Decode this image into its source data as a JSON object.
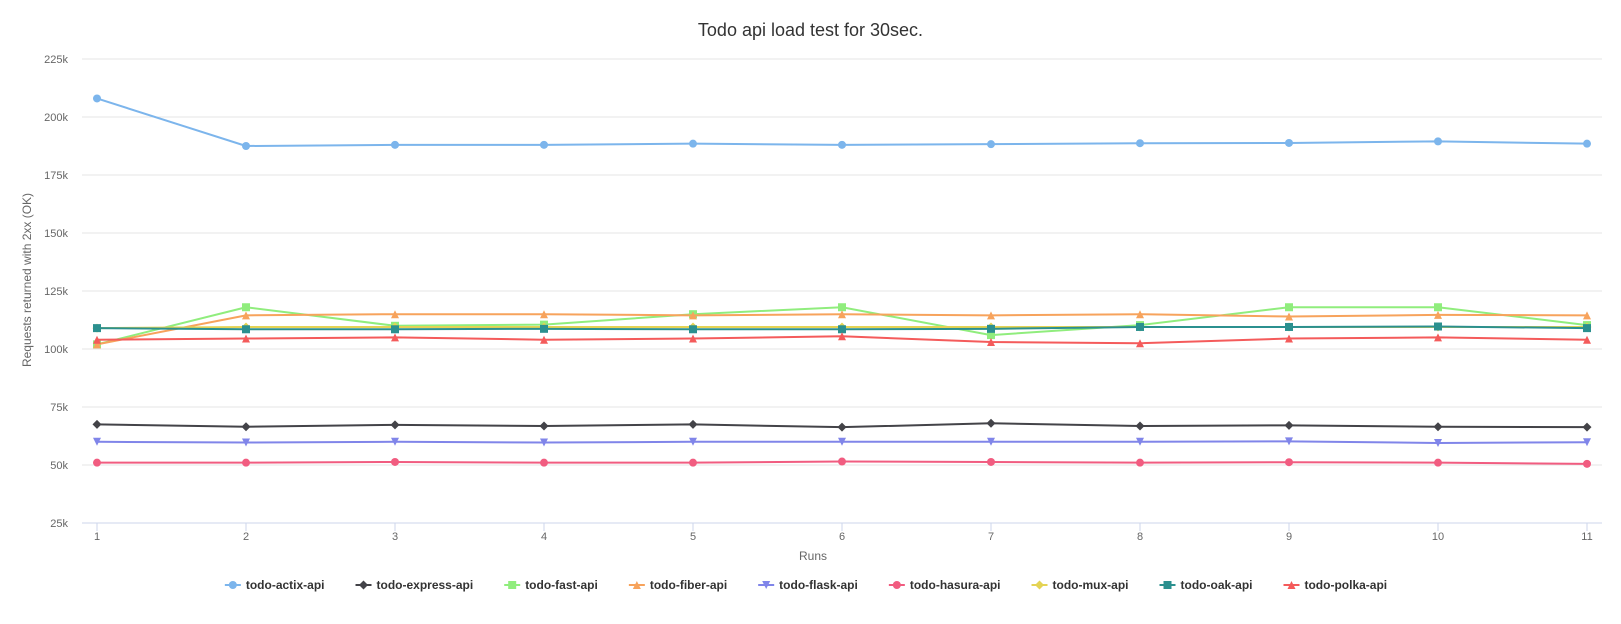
{
  "chart_data": {
    "type": "line",
    "title": "Todo api load test for 30sec.",
    "xlabel": "Runs",
    "ylabel": "Requests returned with 2xx (OK)",
    "x": [
      1,
      2,
      3,
      4,
      5,
      6,
      7,
      8,
      9,
      10,
      11
    ],
    "ylim": [
      25000,
      225000
    ],
    "yticks": [
      25000,
      50000,
      75000,
      100000,
      125000,
      150000,
      175000,
      200000,
      225000
    ],
    "ytick_labels": [
      "25k",
      "50k",
      "75k",
      "100k",
      "125k",
      "150k",
      "175k",
      "200k",
      "225k"
    ],
    "grid": true,
    "legend_position": "bottom",
    "series": [
      {
        "name": "todo-actix-api",
        "color": "#7cb5ec",
        "marker": "circle",
        "values": [
          208000,
          187500,
          188000,
          188000,
          188500,
          188000,
          188300,
          188700,
          188800,
          189500,
          188500
        ]
      },
      {
        "name": "todo-express-api",
        "color": "#434348",
        "marker": "diamond",
        "values": [
          67500,
          66500,
          67300,
          66800,
          67500,
          66300,
          68000,
          66800,
          67100,
          66500,
          66300
        ]
      },
      {
        "name": "todo-fast-api",
        "color": "#90ed7d",
        "marker": "square",
        "values": [
          102000,
          118000,
          110000,
          110500,
          115000,
          118000,
          106000,
          110300,
          118000,
          118000,
          110300
        ]
      },
      {
        "name": "todo-fiber-api",
        "color": "#f7a35c",
        "marker": "triangle",
        "values": [
          102000,
          114500,
          115000,
          115000,
          114500,
          115000,
          114500,
          115000,
          114000,
          114700,
          114500
        ]
      },
      {
        "name": "todo-flask-api",
        "color": "#8085e9",
        "marker": "triangle-down",
        "values": [
          60000,
          59700,
          60000,
          59700,
          60000,
          60000,
          60000,
          60000,
          60200,
          59500,
          59800
        ]
      },
      {
        "name": "todo-hasura-api",
        "color": "#f15c80",
        "marker": "circle",
        "values": [
          51000,
          51000,
          51300,
          51000,
          51000,
          51500,
          51300,
          51000,
          51200,
          51000,
          50500
        ]
      },
      {
        "name": "todo-mux-api",
        "color": "#e4d354",
        "marker": "diamond",
        "values": [
          109000,
          109500,
          109500,
          109500,
          109500,
          109500,
          109500,
          109500,
          109500,
          109500,
          109500
        ]
      },
      {
        "name": "todo-oak-api",
        "color": "#2b908f",
        "marker": "square",
        "values": [
          109000,
          108500,
          108500,
          108700,
          108500,
          108500,
          108700,
          109500,
          109500,
          109700,
          109000
        ]
      },
      {
        "name": "todo-polka-api",
        "color": "#f45b5b",
        "marker": "triangle",
        "values": [
          104000,
          104500,
          105000,
          104000,
          104500,
          105500,
          103000,
          102500,
          104500,
          105000,
          104000
        ]
      }
    ]
  }
}
